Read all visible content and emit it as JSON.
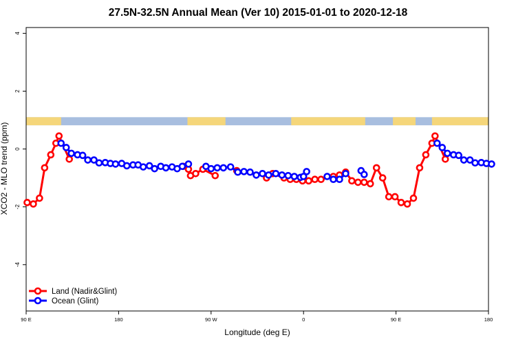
{
  "chart_data": {
    "type": "line",
    "title": "27.5N-32.5N Annual Mean (Ver 10)   2015-01-01 to 2020-12-18",
    "xlabel": "Longitude (deg E)",
    "ylabel": "XCO2 - MLO trend (ppm)",
    "x_tick_labels": [
      "90 E",
      "180",
      "90 W",
      "0",
      "90 E",
      "180"
    ],
    "x_tick_positions_deg": [
      90,
      180,
      270,
      360,
      450,
      540
    ],
    "xlim": [
      90,
      540
    ],
    "y_ticks": [
      4,
      2,
      0,
      -2,
      -4
    ],
    "ylim": [
      -5.6,
      4.2
    ],
    "grid": false,
    "legend_position": "bottom-left",
    "land_ocean_strip": {
      "y_top": 1.1,
      "y_bottom": 0.82,
      "ocean_color": "#a8bedf",
      "land_color": "#f5d67a",
      "land_segments_deg": [
        [
          90,
          124
        ],
        [
          247,
          284
        ],
        [
          348,
          420
        ],
        [
          447,
          469
        ],
        [
          485,
          550
        ]
      ]
    },
    "series": [
      {
        "name": "Land (Nadir&Glint)",
        "color": "#ff0000",
        "points": [
          [
            91,
            -1.85
          ],
          [
            97,
            -1.9
          ],
          [
            103,
            -1.7
          ],
          [
            108,
            -0.65
          ],
          [
            114,
            -0.2
          ],
          [
            119,
            0.2
          ],
          [
            122,
            0.45
          ],
          [
            132,
            -0.35
          ],
          [
            243,
            -0.6
          ],
          [
            248,
            -0.7
          ],
          [
            250,
            -0.92
          ],
          [
            255,
            -0.85
          ],
          [
            262,
            -0.7
          ],
          [
            274,
            -0.92
          ],
          [
            295,
            -0.75
          ],
          [
            324,
            -1.0
          ],
          [
            330,
            -0.85
          ],
          [
            341,
            -1.0
          ],
          [
            347,
            -1.05
          ],
          [
            353,
            -1.05
          ],
          [
            359,
            -1.1
          ],
          [
            365,
            -1.1
          ],
          [
            371,
            -1.05
          ],
          [
            377,
            -1.05
          ],
          [
            389,
            -0.95
          ],
          [
            395,
            -0.9
          ],
          [
            401,
            -0.8
          ],
          [
            407,
            -1.1
          ],
          [
            413,
            -1.15
          ],
          [
            419,
            -1.15
          ],
          [
            425,
            -1.2
          ],
          [
            431,
            -0.65
          ],
          [
            437,
            -1.0
          ],
          [
            443,
            -1.65
          ],
          [
            449,
            -1.65
          ],
          [
            455,
            -1.85
          ],
          [
            461,
            -1.9
          ],
          [
            467,
            -1.7
          ],
          [
            473,
            -0.65
          ],
          [
            479,
            -0.2
          ],
          [
            485,
            0.2
          ],
          [
            488,
            0.45
          ],
          [
            498,
            -0.35
          ]
        ]
      },
      {
        "name": "Ocean (Glint)",
        "color": "#0000ff",
        "points": [
          [
            124,
            0.2
          ],
          [
            129,
            0.05
          ],
          [
            134,
            -0.15
          ],
          [
            140,
            -0.2
          ],
          [
            145,
            -0.22
          ],
          [
            150,
            -0.38
          ],
          [
            156,
            -0.38
          ],
          [
            161,
            -0.48
          ],
          [
            167,
            -0.47
          ],
          [
            172,
            -0.5
          ],
          [
            177,
            -0.52
          ],
          [
            183,
            -0.5
          ],
          [
            188,
            -0.58
          ],
          [
            194,
            -0.55
          ],
          [
            199,
            -0.55
          ],
          [
            204,
            -0.62
          ],
          [
            210,
            -0.58
          ],
          [
            215,
            -0.68
          ],
          [
            221,
            -0.6
          ],
          [
            226,
            -0.65
          ],
          [
            232,
            -0.62
          ],
          [
            237,
            -0.68
          ],
          [
            242,
            -0.6
          ],
          [
            248,
            -0.52
          ],
          [
            265,
            -0.6
          ],
          [
            270,
            -0.68
          ],
          [
            276,
            -0.65
          ],
          [
            282,
            -0.65
          ],
          [
            289,
            -0.62
          ],
          [
            296,
            -0.8
          ],
          [
            302,
            -0.78
          ],
          [
            308,
            -0.8
          ],
          [
            314,
            -0.9
          ],
          [
            320,
            -0.85
          ],
          [
            326,
            -0.9
          ],
          [
            333,
            -0.85
          ],
          [
            339,
            -0.9
          ],
          [
            345,
            -0.92
          ],
          [
            351,
            -0.95
          ],
          [
            357,
            -0.98
          ],
          [
            360,
            -0.95
          ],
          [
            363,
            -0.78
          ],
          [
            383,
            -0.95
          ],
          [
            389,
            -1.05
          ],
          [
            395,
            -1.05
          ],
          [
            401,
            -0.85
          ],
          [
            416,
            -0.75
          ],
          [
            419,
            -0.88
          ],
          [
            490,
            0.2
          ],
          [
            495,
            0.05
          ],
          [
            500,
            -0.15
          ],
          [
            506,
            -0.2
          ],
          [
            511,
            -0.22
          ],
          [
            516,
            -0.38
          ],
          [
            522,
            -0.38
          ],
          [
            527,
            -0.48
          ],
          [
            533,
            -0.47
          ],
          [
            538,
            -0.5
          ],
          [
            543,
            -0.52
          ]
        ]
      }
    ]
  }
}
